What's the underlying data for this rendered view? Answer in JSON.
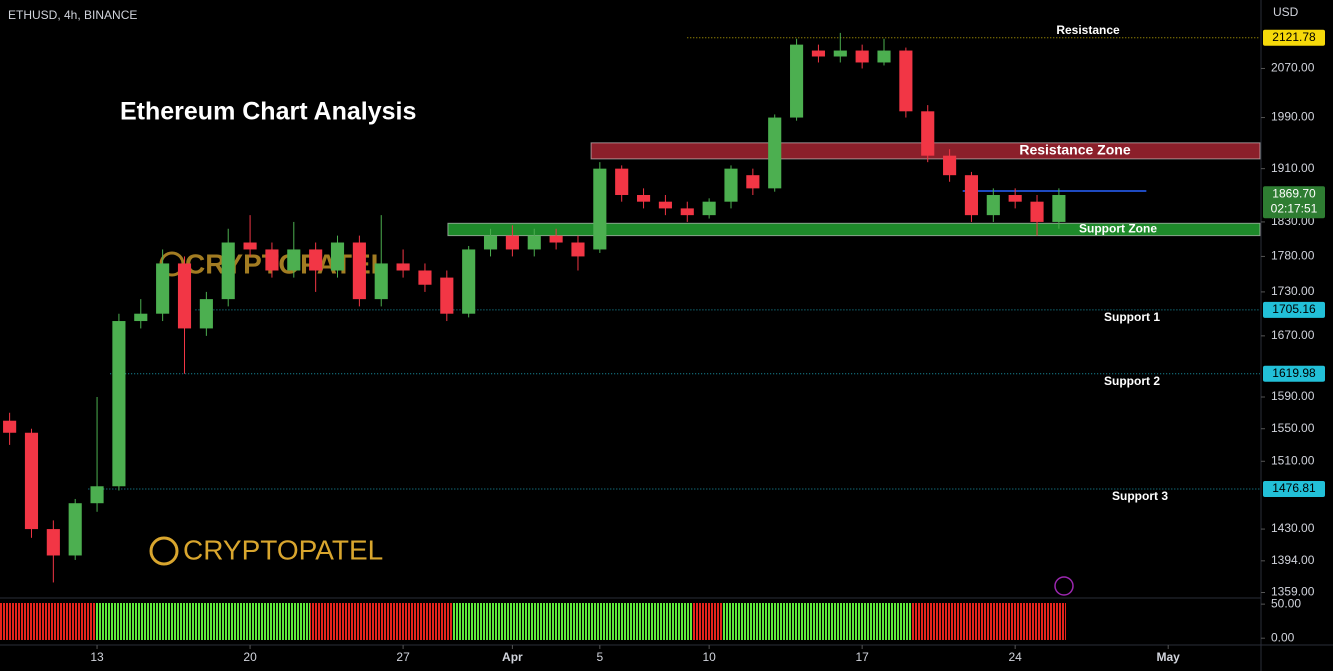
{
  "chart_data": {
    "type": "candlestick",
    "symbol_label": "ETHUSD, 4h, BINANCE",
    "currency": "USD",
    "title": "Ethereum Chart Analysis",
    "watermark": "CRYPTOPATEL",
    "log_scale": true,
    "up_color": "#4caf50",
    "down_color": "#f23645",
    "xlim": [
      8.56,
      66.2
    ],
    "xticks": [
      {
        "value": 13,
        "label": "13"
      },
      {
        "value": 20,
        "label": "20"
      },
      {
        "value": 27,
        "label": "27"
      },
      {
        "value": 32,
        "label": "Apr"
      },
      {
        "value": 36,
        "label": "5"
      },
      {
        "value": 41,
        "label": "10"
      },
      {
        "value": 48,
        "label": "17"
      },
      {
        "value": 55,
        "label": "24"
      },
      {
        "value": 62,
        "label": "May"
      }
    ],
    "ylim": [
      1353,
      2187
    ],
    "yticks": [
      {
        "value": 2070,
        "label": "2070.00"
      },
      {
        "value": 1990,
        "label": "1990.00"
      },
      {
        "value": 1910,
        "label": "1910.00"
      },
      {
        "value": 1830,
        "label": "1830.00"
      },
      {
        "value": 1780,
        "label": "1780.00"
      },
      {
        "value": 1730,
        "label": "1730.00"
      },
      {
        "value": 1670,
        "label": "1670.00"
      },
      {
        "value": 1590,
        "label": "1590.00"
      },
      {
        "value": 1550,
        "label": "1550.00"
      },
      {
        "value": 1510,
        "label": "1510.00"
      },
      {
        "value": 1430,
        "label": "1430.00"
      },
      {
        "value": 1394,
        "label": "1394.00"
      },
      {
        "value": 1359,
        "label": "1359.00"
      }
    ],
    "x": [
      9,
      10,
      11,
      12,
      13,
      14,
      15,
      16,
      17,
      18,
      19,
      20,
      21,
      22,
      23,
      24,
      25,
      26,
      27,
      28,
      29,
      30,
      31,
      32,
      33,
      34,
      35,
      36,
      37,
      38,
      39,
      40,
      41,
      42,
      43,
      44,
      45,
      46,
      47,
      48,
      49,
      50,
      51,
      52,
      53,
      54,
      55,
      56,
      57
    ],
    "open": [
      1560,
      1545,
      1430,
      1400,
      1460,
      1480,
      1690,
      1700,
      1770,
      1680,
      1720,
      1800,
      1790,
      1760,
      1790,
      1760,
      1800,
      1720,
      1770,
      1760,
      1750,
      1700,
      1790,
      1810,
      1790,
      1810,
      1800,
      1790,
      1910,
      1870,
      1860,
      1850,
      1840,
      1860,
      1900,
      1880,
      1990,
      2100,
      2090,
      2100,
      2080,
      2100,
      2000,
      1930,
      1900,
      1840,
      1870,
      1860,
      1830
    ],
    "high": [
      1570,
      1550,
      1440,
      1465,
      1590,
      1700,
      1720,
      1790,
      1780,
      1730,
      1820,
      1840,
      1800,
      1830,
      1800,
      1810,
      1810,
      1840,
      1790,
      1770,
      1760,
      1795,
      1820,
      1825,
      1820,
      1820,
      1810,
      1920,
      1915,
      1880,
      1870,
      1860,
      1865,
      1915,
      1910,
      1995,
      2120,
      2110,
      2130,
      2110,
      2120,
      2105,
      2010,
      1940,
      1905,
      1880,
      1880,
      1870,
      1880
    ],
    "low": [
      1530,
      1420,
      1370,
      1395,
      1450,
      1475,
      1680,
      1690,
      1620,
      1670,
      1710,
      1780,
      1750,
      1750,
      1730,
      1750,
      1710,
      1710,
      1750,
      1730,
      1690,
      1695,
      1780,
      1780,
      1780,
      1790,
      1760,
      1785,
      1860,
      1850,
      1840,
      1830,
      1835,
      1850,
      1870,
      1875,
      1985,
      2080,
      2080,
      2070,
      2075,
      1990,
      1920,
      1890,
      1830,
      1830,
      1850,
      1810,
      1820
    ],
    "close": [
      1545,
      1430,
      1400,
      1460,
      1480,
      1690,
      1700,
      1770,
      1680,
      1720,
      1800,
      1790,
      1760,
      1790,
      1760,
      1800,
      1720,
      1770,
      1760,
      1740,
      1700,
      1790,
      1810,
      1790,
      1810,
      1800,
      1780,
      1910,
      1870,
      1860,
      1850,
      1840,
      1860,
      1910,
      1880,
      1990,
      2110,
      2090,
      2100,
      2080,
      2100,
      2000,
      1930,
      1900,
      1840,
      1870,
      1860,
      1830,
      1870
    ],
    "levels": [
      {
        "name": "Resistance",
        "value": 2121.78,
        "x_start": 40,
        "color": "#f5d90a"
      },
      {
        "name": "Support 1",
        "value": 1705.16,
        "x_start": 17.5,
        "color": "#22c0d8"
      },
      {
        "name": "Support 2",
        "value": 1619.98,
        "x_start": 13.6,
        "color": "#22c0d8"
      },
      {
        "name": "Support 3",
        "value": 1476.81,
        "x_start": 12.6,
        "color": "#22c0d8"
      }
    ],
    "zones": [
      {
        "name": "Resistance Zone",
        "low": 1925,
        "high": 1950,
        "x_start": 35.6,
        "color": "#8b1f2a"
      },
      {
        "name": "Support Zone",
        "low": 1810,
        "high": 1828,
        "x_start": 29.05,
        "color": "#1e8a2a"
      }
    ],
    "trendline": {
      "value": 1876,
      "x": [
        52.6,
        61
      ],
      "color": "#2962ff"
    },
    "last_price": {
      "value": 1869.7,
      "label": "1869.70"
    },
    "countdown": "02:17:51",
    "indicator": {
      "ylim": [
        -10,
        59
      ],
      "yticks": [
        {
          "value": 50,
          "label": "50.00"
        },
        {
          "value": 0,
          "label": "0.00"
        }
      ]
    }
  }
}
